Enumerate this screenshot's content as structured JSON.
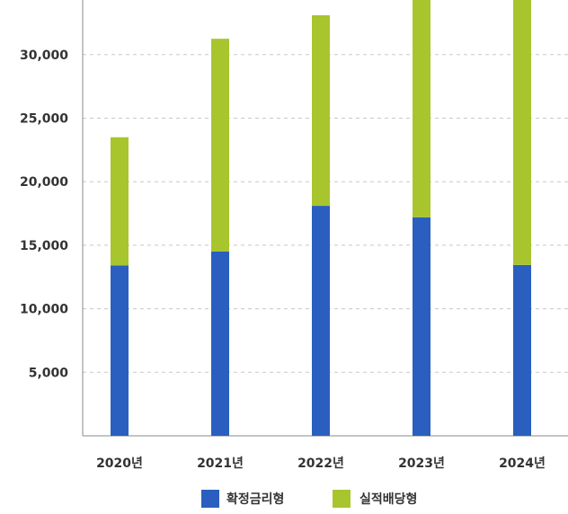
{
  "chart_data": {
    "type": "bar",
    "stacked": true,
    "categories": [
      "2020년",
      "2021년",
      "2022년",
      "2023년",
      "2024년"
    ],
    "series": [
      {
        "name": "확정금리형",
        "values": [
          13400,
          14500,
          18100,
          17200,
          13450
        ],
        "color": "#2a5fbf"
      },
      {
        "name": "실적배당형",
        "values": [
          10100,
          16750,
          15000,
          17500,
          21050
        ],
        "color": "#a8c52e"
      }
    ],
    "yticks": [
      5000,
      10000,
      15000,
      20000,
      25000,
      30000
    ],
    "ytick_labels": [
      "5,000",
      "10,000",
      "15,000",
      "20,000",
      "25,000",
      "30,000"
    ],
    "ylim": [
      0,
      34300
    ],
    "grid": true,
    "legend_position": "bottom-center"
  }
}
